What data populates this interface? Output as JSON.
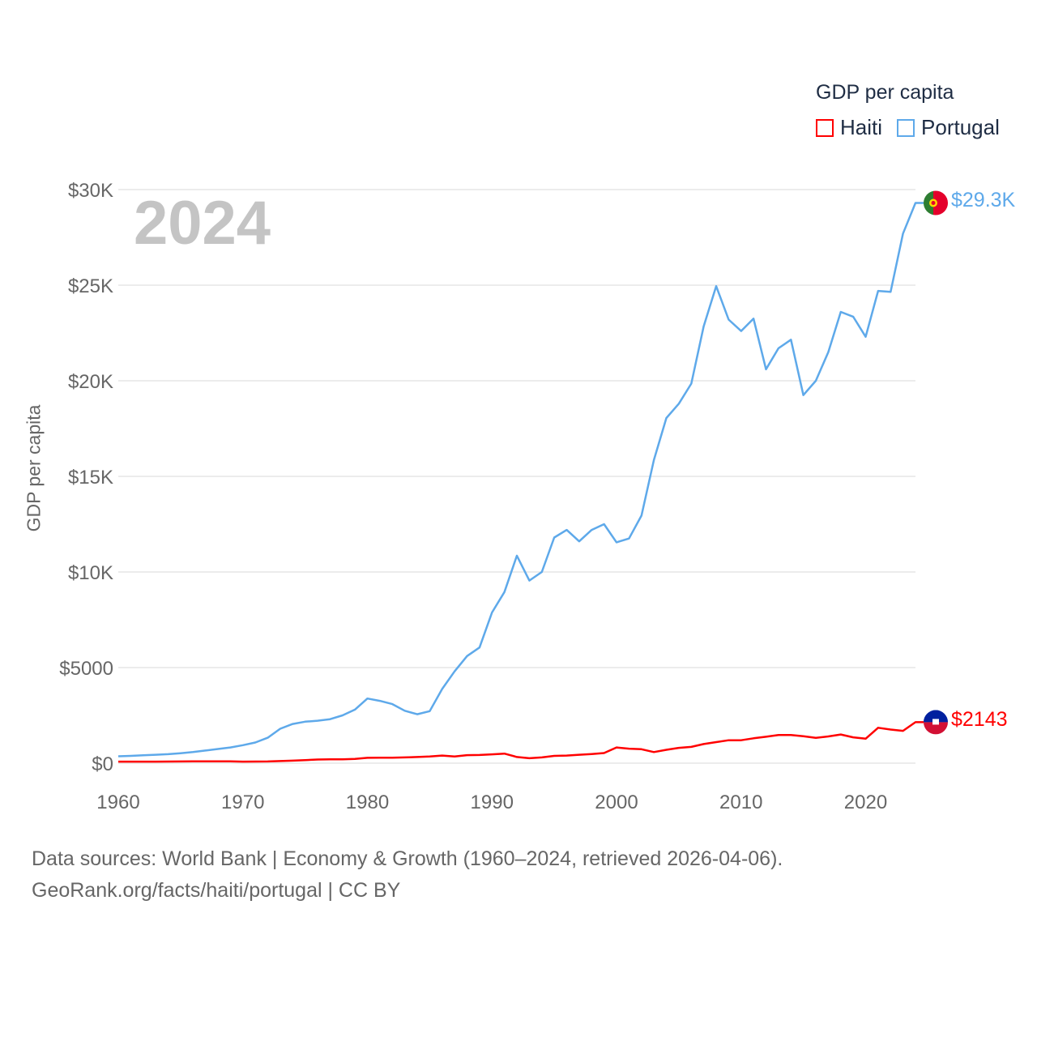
{
  "legend": {
    "title": "GDP per capita",
    "items": [
      {
        "name": "Haiti",
        "color": "#ff0000"
      },
      {
        "name": "Portugal",
        "color": "#5ea9ea"
      }
    ]
  },
  "year_label": "2024",
  "end_labels": {
    "portugal": "$29.3K",
    "haiti": "$2143"
  },
  "footer": {
    "line1": "Data sources: World Bank | Economy & Growth (1960–2024, retrieved 2026-04-06).",
    "line2": "GeoRank.org/facts/haiti/portugal | CC BY"
  },
  "chart_data": {
    "type": "line",
    "title": "GDP per capita",
    "xlabel": "",
    "ylabel": "GDP per capita",
    "xlim": [
      1960,
      2024
    ],
    "ylim": [
      0,
      30000
    ],
    "x_ticks": [
      1960,
      1970,
      1980,
      1990,
      2000,
      2010,
      2020
    ],
    "y_ticks": [
      {
        "v": 0,
        "label": "$0"
      },
      {
        "v": 5000,
        "label": "$5000"
      },
      {
        "v": 10000,
        "label": "$10K"
      },
      {
        "v": 15000,
        "label": "$15K"
      },
      {
        "v": 20000,
        "label": "$20K"
      },
      {
        "v": 25000,
        "label": "$25K"
      },
      {
        "v": 30000,
        "label": "$30K"
      }
    ],
    "grid": true,
    "legend_position": "top-right",
    "x_start": 1960,
    "series": [
      {
        "name": "Portugal",
        "color": "#5ea9ea",
        "values": [
          360,
          380,
          410,
          440,
          470,
          520,
          580,
          660,
          740,
          820,
          940,
          1080,
          1330,
          1800,
          2050,
          2170,
          2220,
          2300,
          2500,
          2800,
          3380,
          3260,
          3090,
          2740,
          2560,
          2720,
          3880,
          4800,
          5600,
          6050,
          7880,
          8950,
          10850,
          9550,
          10000,
          11800,
          12200,
          11600,
          12200,
          12500,
          11550,
          11750,
          12950,
          15850,
          18050,
          18800,
          19850,
          22850,
          24950,
          23200,
          22600,
          23250,
          20600,
          21700,
          22150,
          19250,
          20000,
          21500,
          23600,
          23350,
          22300,
          24700,
          24650,
          27700,
          29300
        ]
      },
      {
        "name": "Haiti",
        "color": "#ff0000",
        "values": [
          80,
          80,
          80,
          80,
          85,
          90,
          95,
          95,
          95,
          95,
          80,
          85,
          90,
          110,
          130,
          160,
          190,
          200,
          200,
          220,
          280,
          290,
          290,
          300,
          320,
          350,
          400,
          350,
          420,
          430,
          460,
          500,
          320,
          260,
          300,
          380,
          400,
          440,
          480,
          530,
          820,
          760,
          730,
          580,
          700,
          800,
          850,
          1000,
          1100,
          1200,
          1200,
          1300,
          1380,
          1470,
          1470,
          1410,
          1320,
          1400,
          1500,
          1350,
          1280,
          1850,
          1760,
          1690,
          2143
        ]
      }
    ]
  }
}
